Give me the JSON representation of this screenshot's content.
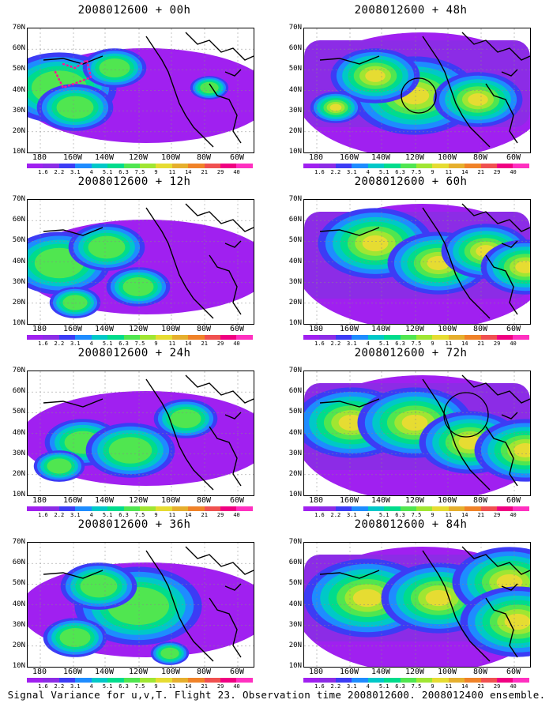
{
  "caption": "Signal Variance for u,v,T. Flight 23. Observation time 2008012600. 2008012400 ensemble.",
  "panels": [
    {
      "title": "2008012600 + 00h",
      "overlay": "dots"
    },
    {
      "title": "2008012600 + 48h",
      "overlay": "circle1"
    },
    {
      "title": "2008012600 + 12h",
      "overlay": ""
    },
    {
      "title": "2008012600 + 60h",
      "overlay": ""
    },
    {
      "title": "2008012600 + 24h",
      "overlay": ""
    },
    {
      "title": "2008012600 + 72h",
      "overlay": "circle2"
    },
    {
      "title": "2008012600 + 36h",
      "overlay": ""
    },
    {
      "title": "2008012600 + 84h",
      "overlay": ""
    }
  ],
  "y_ticks": [
    "70N",
    "60N",
    "50N",
    "40N",
    "30N",
    "20N",
    "10N"
  ],
  "x_ticks": [
    "180",
    "160W",
    "140W",
    "120W",
    "100W",
    "80W",
    "60W"
  ],
  "colorbar": {
    "labels": [
      "1.6",
      "2.2",
      "3.1",
      "4",
      "5.1",
      "6.3",
      "7.5",
      "9",
      "11",
      "14",
      "21",
      "29",
      "40"
    ],
    "colors": [
      "#a020f0",
      "#8c2ce6",
      "#3c3cf5",
      "#1e8cff",
      "#00c8c8",
      "#00dc8c",
      "#50e650",
      "#a0e632",
      "#e6dc32",
      "#e6af2d",
      "#f08228",
      "#f05050",
      "#f00082",
      "#ff30c0"
    ]
  }
}
